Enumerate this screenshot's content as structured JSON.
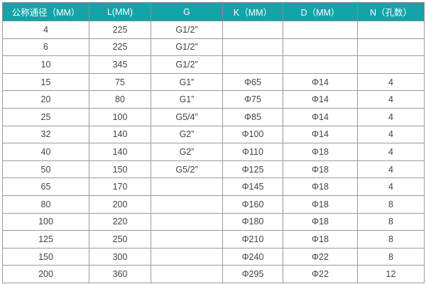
{
  "headers": [
    "公称通径（MM）",
    "L(MM)",
    "G",
    "K（MM）",
    "D（MM）",
    "N（孔数）"
  ],
  "rows": [
    [
      "4",
      "225",
      "G1/2”",
      "",
      "",
      ""
    ],
    [
      "6",
      "225",
      "G1/2”",
      "",
      "",
      ""
    ],
    [
      "10",
      "345",
      "G1/2”",
      "",
      "",
      ""
    ],
    [
      "15",
      "75",
      "G1”",
      "Φ65",
      "Φ14",
      "4"
    ],
    [
      "20",
      "80",
      "G1”",
      "Φ75",
      "Φ14",
      "4"
    ],
    [
      "25",
      "100",
      "G5/4”",
      "Φ85",
      "Φ14",
      "4"
    ],
    [
      "32",
      "140",
      "G2”",
      "Φ100",
      "Φ14",
      "4"
    ],
    [
      "40",
      "140",
      "G2”",
      "Φ110",
      "Φ18",
      "4"
    ],
    [
      "50",
      "150",
      "G5/2”",
      "Φ125",
      "Φ18",
      "4"
    ],
    [
      "65",
      "170",
      "",
      "Φ145",
      "Φ18",
      "4"
    ],
    [
      "80",
      "200",
      "",
      "Φ160",
      "Φ18",
      "8"
    ],
    [
      "100",
      "220",
      "",
      "Φ180",
      "Φ18",
      "8"
    ],
    [
      "125",
      "250",
      "",
      "Φ210",
      "Φ18",
      "8"
    ],
    [
      "150",
      "300",
      "",
      "Φ240",
      "Φ22",
      "8"
    ],
    [
      "200",
      "360",
      "",
      "Φ295",
      "Φ22",
      "12"
    ]
  ],
  "colors": {
    "header_bg": "#12a4a9",
    "header_text": "#ffffff",
    "cell_text": "#444444"
  }
}
